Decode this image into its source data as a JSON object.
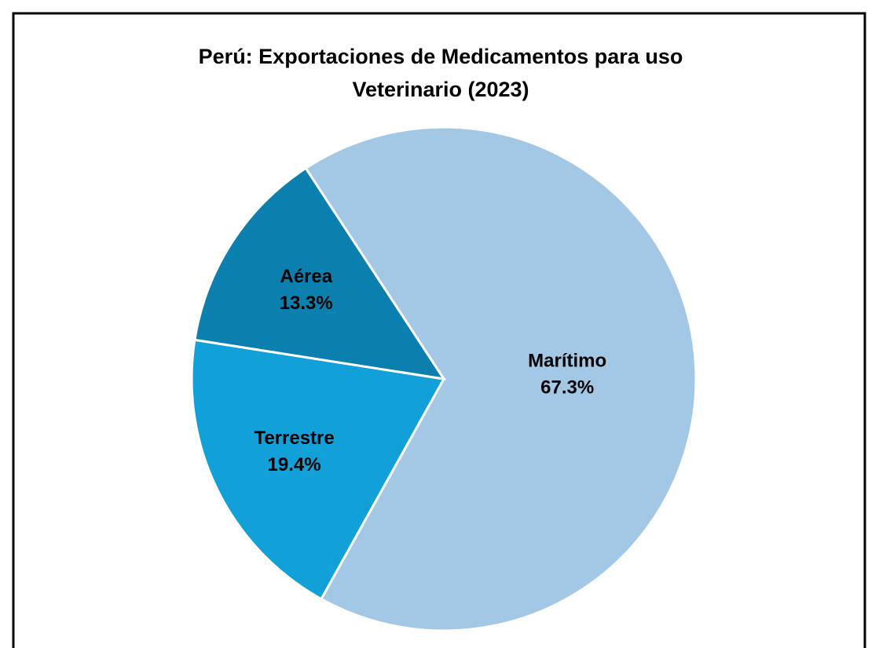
{
  "chart_data": {
    "type": "pie",
    "title": [
      "Perú: Exportaciones de Medicamentos para uso",
      "Veterinario (2023)"
    ],
    "categories": [
      "Marítimo",
      "Terrestre",
      "Aérea"
    ],
    "values": [
      67.3,
      19.4,
      13.3
    ],
    "value_labels": [
      "67.3%",
      "19.4%",
      "13.3%"
    ],
    "colors": [
      "#a3c8e6",
      "#11a0d8",
      "#0b80ae"
    ]
  }
}
